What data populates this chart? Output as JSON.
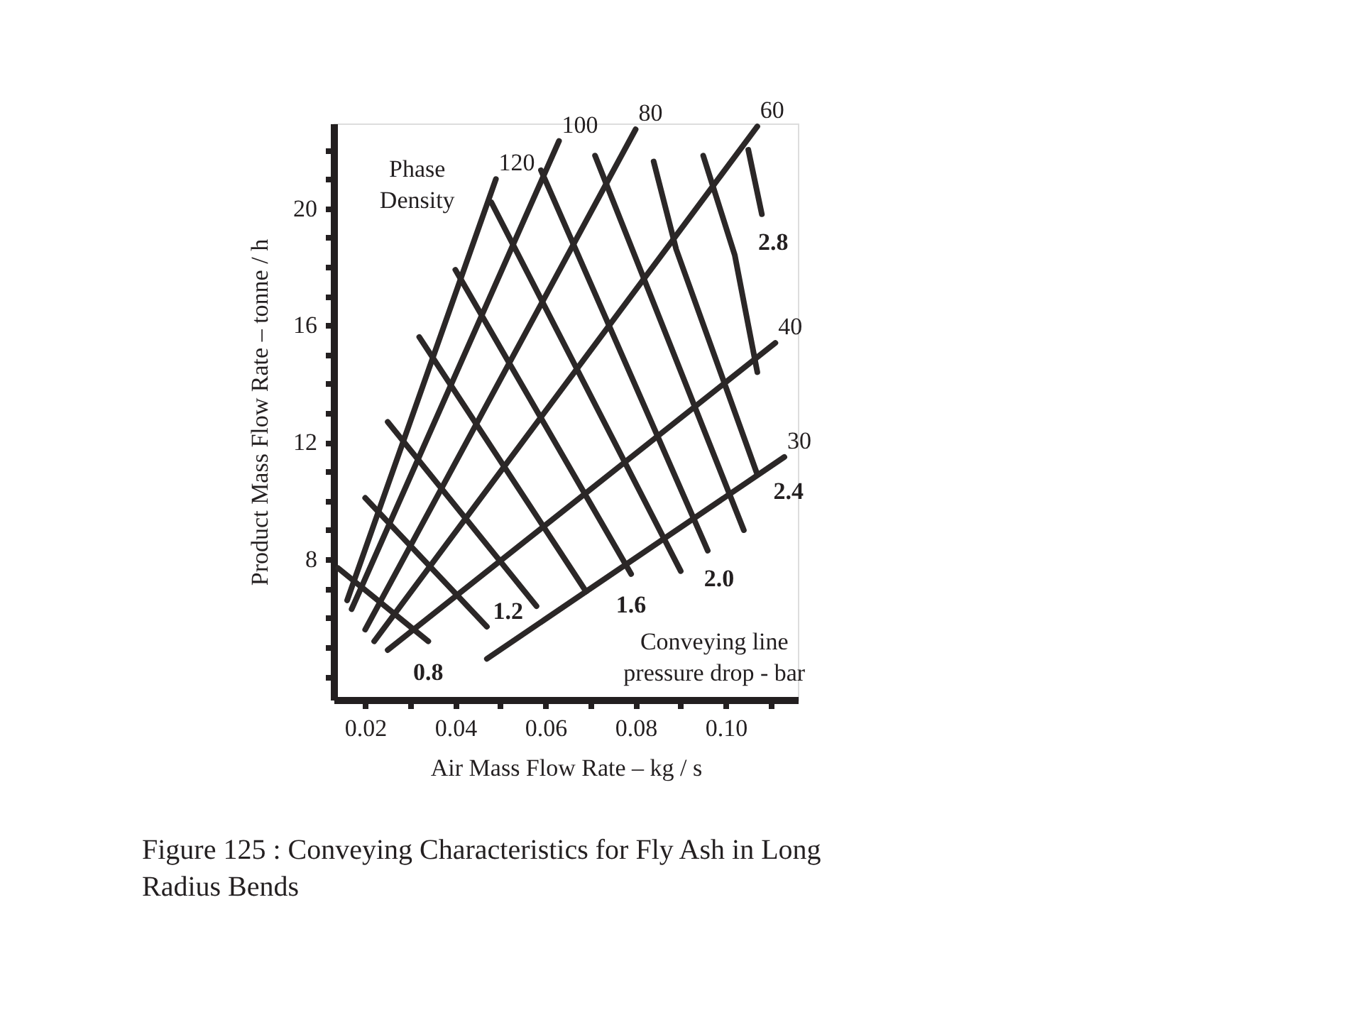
{
  "chart_data": {
    "type": "line",
    "title": "Figure 125 : Conveying Characteristics for Fly Ash in Long\nRadius Bends",
    "xlabel": "Air Mass Flow Rate  –  kg / s",
    "ylabel": "Product Mass Flow Rate – tonne / h",
    "xlim": [
      0.013,
      0.116
    ],
    "ylim": [
      3.2,
      22.9
    ],
    "xticks": [
      {
        "value": 0.02,
        "label": "0.02"
      },
      {
        "value": 0.03,
        "label": null
      },
      {
        "value": 0.04,
        "label": "0.04"
      },
      {
        "value": 0.05,
        "label": null
      },
      {
        "value": 0.06,
        "label": "0.06"
      },
      {
        "value": 0.07,
        "label": null
      },
      {
        "value": 0.08,
        "label": "0.08"
      },
      {
        "value": 0.09,
        "label": null
      },
      {
        "value": 0.1,
        "label": "0.10"
      },
      {
        "value": 0.11,
        "label": null
      }
    ],
    "yticks": [
      {
        "value": 4,
        "label": null
      },
      {
        "value": 5,
        "label": null
      },
      {
        "value": 6,
        "label": null
      },
      {
        "value": 7,
        "label": null
      },
      8,
      {
        "value": 9,
        "label": null
      },
      {
        "value": 10,
        "label": null
      },
      {
        "value": 11,
        "label": null
      },
      12,
      {
        "value": 13,
        "label": null
      },
      {
        "value": 14,
        "label": null
      },
      {
        "value": 15,
        "label": null
      },
      16,
      {
        "value": 17,
        "label": null
      },
      {
        "value": 18,
        "label": null
      },
      {
        "value": 19,
        "label": null
      },
      20,
      {
        "value": 21,
        "label": null
      },
      {
        "value": 22,
        "label": null
      }
    ],
    "grid": false,
    "marker": "none",
    "line_style": "solid",
    "annotations": [
      "Phase\nDensity",
      "Conveying  line\npressure  drop  - bar"
    ],
    "series": [
      {
        "name": "120",
        "color": "#2b2727",
        "x": [
          0.016,
          0.049
        ],
        "values": [
          6.6,
          21.0
        ]
      },
      {
        "name": "100",
        "color": "#2b2727",
        "x": [
          0.017,
          0.063
        ],
        "values": [
          6.3,
          22.3
        ]
      },
      {
        "name": "80",
        "color": "#2b2727",
        "x": [
          0.02,
          0.08
        ],
        "values": [
          5.6,
          22.7
        ]
      },
      {
        "name": "60",
        "color": "#2b2727",
        "x": [
          0.022,
          0.107
        ],
        "values": [
          5.2,
          22.8
        ]
      },
      {
        "name": "40",
        "color": "#2b2727",
        "x": [
          0.025,
          0.111
        ],
        "values": [
          4.9,
          15.4
        ]
      },
      {
        "name": "30",
        "color": "#2b2727",
        "x": [
          0.047,
          0.113
        ],
        "values": [
          4.6,
          11.5
        ]
      },
      {
        "name": "0.8",
        "color": "#2b2727",
        "x": [
          0.014,
          0.034
        ],
        "values": [
          7.7,
          5.2
        ]
      },
      {
        "color": "#2b2727",
        "x": [
          0.02,
          0.047
        ],
        "values": [
          10.1,
          5.7
        ]
      },
      {
        "name": "1.2",
        "color": "#2b2727",
        "x": [
          0.025,
          0.058
        ],
        "values": [
          12.7,
          6.4
        ]
      },
      {
        "color": "#2b2727",
        "x": [
          0.032,
          0.069
        ],
        "values": [
          15.6,
          6.9
        ]
      },
      {
        "name": "1.6",
        "color": "#2b2727",
        "x": [
          0.04,
          0.079
        ],
        "values": [
          17.9,
          7.5
        ]
      },
      {
        "color": "#2b2727",
        "x": [
          0.048,
          0.09
        ],
        "values": [
          20.2,
          7.6
        ]
      },
      {
        "name": "2.0",
        "color": "#2b2727",
        "x": [
          0.059,
          0.096
        ],
        "values": [
          21.3,
          8.3
        ]
      },
      {
        "color": "#2b2727",
        "x": [
          0.071,
          0.104
        ],
        "values": [
          21.8,
          9.0
        ]
      },
      {
        "name": "2.4",
        "color": "#2b2727",
        "x": [
          0.084,
          0.089,
          0.107
        ],
        "values": [
          21.6,
          18.6,
          10.9
        ]
      },
      {
        "color": "#2b2727",
        "x": [
          0.095,
          0.102,
          0.107
        ],
        "values": [
          21.8,
          18.4,
          14.4
        ]
      },
      {
        "name": "2.8",
        "color": "#2b2727",
        "x": [
          0.105,
          0.108
        ],
        "values": [
          22.0,
          19.8
        ]
      }
    ]
  }
}
